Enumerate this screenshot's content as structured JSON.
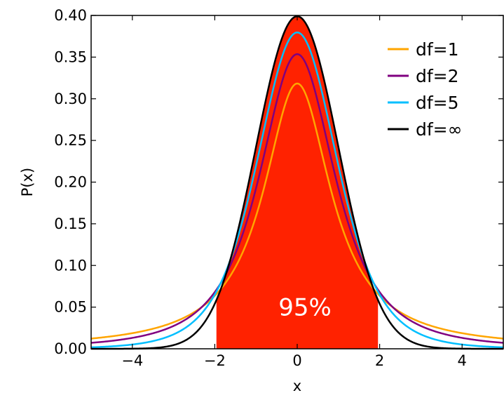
{
  "chart_data": {
    "type": "line",
    "xlabel": "x",
    "ylabel": "P(x)",
    "xlim": [
      -5,
      5
    ],
    "ylim": [
      0,
      0.4
    ],
    "x_ticks": [
      -4,
      -2,
      0,
      2,
      4
    ],
    "x_tick_labels": [
      "−4",
      "−2",
      "0",
      "2",
      "4"
    ],
    "y_ticks": [
      0,
      0.05,
      0.1,
      0.15,
      0.2,
      0.25,
      0.3,
      0.35,
      0.4
    ],
    "y_tick_labels": [
      "0.00",
      "0.05",
      "0.10",
      "0.15",
      "0.20",
      "0.25",
      "0.30",
      "0.35",
      "0.40"
    ],
    "grid": false,
    "legend_position": "upper-right",
    "series": [
      {
        "name": "df=1",
        "df": 1,
        "color": "#ffa500",
        "x": [
          -5,
          -4,
          -3,
          -2,
          -1,
          0,
          1,
          2,
          3,
          4,
          5
        ],
        "values": [
          0.0122,
          0.0187,
          0.0318,
          0.0637,
          0.1592,
          0.3183,
          0.1592,
          0.0637,
          0.0318,
          0.0187,
          0.0122
        ]
      },
      {
        "name": "df=2",
        "df": 2,
        "color": "#800080",
        "x": [
          -5,
          -4,
          -3,
          -2,
          -1,
          0,
          1,
          2,
          3,
          4,
          5
        ],
        "values": [
          0.0071,
          0.0131,
          0.0274,
          0.068,
          0.1925,
          0.3536,
          0.1925,
          0.068,
          0.0274,
          0.0131,
          0.0071
        ]
      },
      {
        "name": "df=5",
        "df": 5,
        "color": "#00bfff",
        "x": [
          -5,
          -4,
          -3,
          -2,
          -1,
          0,
          1,
          2,
          3,
          4,
          5
        ],
        "values": [
          0.0018,
          0.0051,
          0.0173,
          0.0651,
          0.2197,
          0.3796,
          0.2197,
          0.0651,
          0.0173,
          0.0051,
          0.0018
        ]
      },
      {
        "name": "df=∞",
        "df": null,
        "color": "#000000",
        "x": [
          -5,
          -4,
          -3,
          -2,
          -1,
          0,
          1,
          2,
          3,
          4,
          5
        ],
        "values": [
          0.0,
          0.0001,
          0.0044,
          0.054,
          0.242,
          0.3989,
          0.242,
          0.054,
          0.0044,
          0.0001,
          0.0
        ]
      }
    ],
    "shaded_region": {
      "x_from": -1.96,
      "x_to": 1.96,
      "color": "#ff2200",
      "label": "95%"
    }
  }
}
